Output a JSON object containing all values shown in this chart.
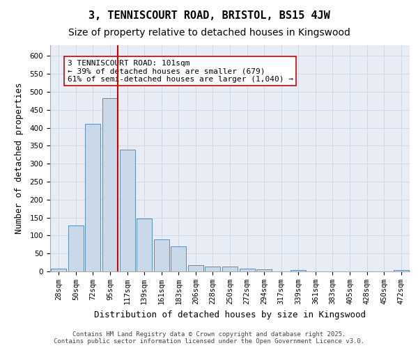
{
  "title1": "3, TENNISCOURT ROAD, BRISTOL, BS15 4JW",
  "title2": "Size of property relative to detached houses in Kingswood",
  "xlabel": "Distribution of detached houses by size in Kingswood",
  "ylabel": "Number of detached properties",
  "categories": [
    "28sqm",
    "50sqm",
    "72sqm",
    "95sqm",
    "117sqm",
    "139sqm",
    "161sqm",
    "183sqm",
    "206sqm",
    "228sqm",
    "250sqm",
    "272sqm",
    "294sqm",
    "317sqm",
    "339sqm",
    "361sqm",
    "383sqm",
    "405sqm",
    "428sqm",
    "450sqm",
    "472sqm"
  ],
  "values": [
    8,
    127,
    410,
    483,
    340,
    148,
    90,
    70,
    17,
    13,
    13,
    7,
    5,
    0,
    3,
    0,
    0,
    0,
    0,
    0,
    4
  ],
  "bar_color": "#c9d9e8",
  "bar_edge_color": "#5b8db8",
  "redline_x": 3,
  "annotation_text": "3 TENNISCOURT ROAD: 101sqm\n← 39% of detached houses are smaller (679)\n61% of semi-detached houses are larger (1,040) →",
  "annotation_box_color": "#ffffff",
  "annotation_box_edge": "#cc0000",
  "redline_color": "#cc0000",
  "grid_color": "#d0d8e8",
  "bg_color": "#e8edf5",
  "ylim": [
    0,
    630
  ],
  "yticks": [
    0,
    50,
    100,
    150,
    200,
    250,
    300,
    350,
    400,
    450,
    500,
    550,
    600
  ],
  "footnote": "Contains HM Land Registry data © Crown copyright and database right 2025.\nContains public sector information licensed under the Open Government Licence v3.0.",
  "title1_fontsize": 11,
  "title2_fontsize": 10,
  "xlabel_fontsize": 9,
  "ylabel_fontsize": 9,
  "tick_fontsize": 7.5,
  "annot_fontsize": 8,
  "footnote_fontsize": 6.5
}
